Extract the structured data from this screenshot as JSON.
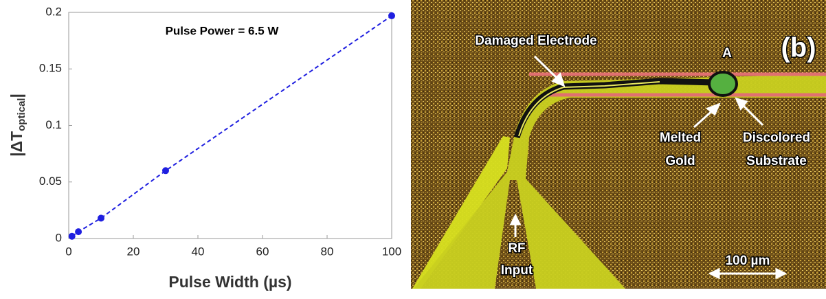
{
  "chart_data": {
    "type": "scatter",
    "ylabel": [
      "|ΔT",
      "optical",
      "|"
    ],
    "xlabel": "Pulse Width (µs)",
    "annotation": "Pulse Power = 6.5 W",
    "x": [
      1,
      3,
      10,
      30,
      100
    ],
    "series": [
      {
        "color": "#1f1fe0",
        "values": [
          0.002,
          0.006,
          0.018,
          0.06,
          0.197
        ]
      }
    ],
    "xlim": [
      0,
      100
    ],
    "xticks": [
      0,
      20,
      40,
      60,
      80,
      100
    ],
    "ylim": [
      0,
      0.2
    ],
    "yticks": [
      0,
      0.05,
      0.1,
      0.15,
      0.2
    ],
    "line": "dashed"
  },
  "image_labels": {
    "panel": "(b)",
    "damaged": "Damaged Electrode",
    "point": "A",
    "melted": [
      "Melted",
      "Gold"
    ],
    "discolored": [
      "Discolored",
      "Substrate"
    ],
    "rf": [
      "RF",
      "Input"
    ],
    "scale": "100 µm"
  }
}
